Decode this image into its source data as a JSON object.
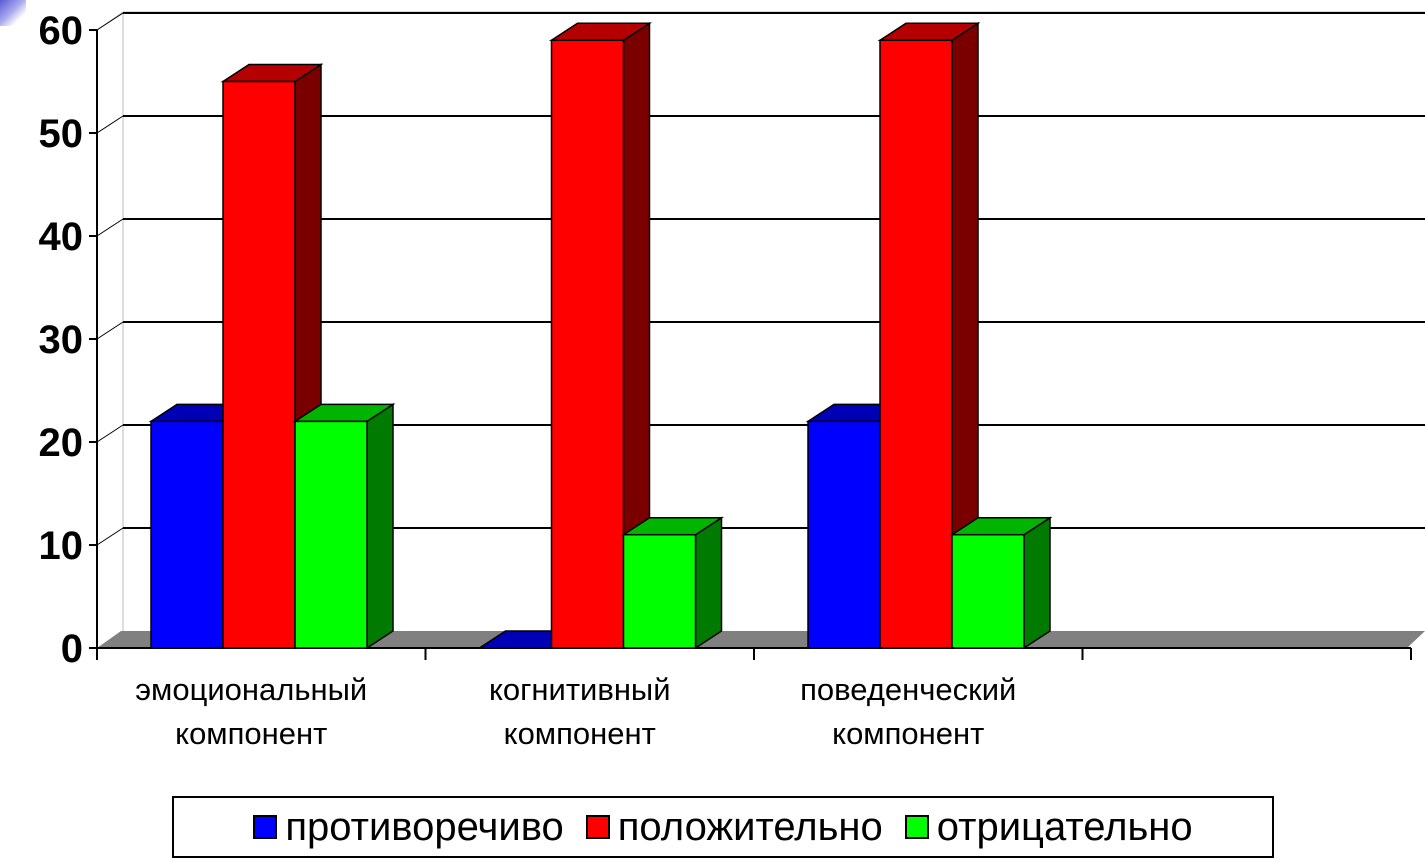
{
  "chart_data": {
    "type": "bar",
    "categories": [
      [
        "эмоциональный",
        "компонент"
      ],
      [
        "когнитивный",
        "компонент"
      ],
      [
        "поведенческий",
        "компонент"
      ],
      []
    ],
    "series": [
      {
        "name": "противоречиво",
        "values": [
          22,
          0,
          22,
          null
        ],
        "color": "#0000ff",
        "side_color": "#00007a",
        "top_color": "#0000b4"
      },
      {
        "name": "положительно",
        "values": [
          55,
          59,
          59,
          null
        ],
        "color": "#ff0000",
        "side_color": "#7a0000",
        "top_color": "#b40000"
      },
      {
        "name": "отрицательно",
        "values": [
          22,
          11,
          11,
          null
        ],
        "color": "#00ff00",
        "side_color": "#007a00",
        "top_color": "#00b400"
      }
    ],
    "y_ticks": [
      "0",
      "10",
      "20",
      "30",
      "40",
      "50",
      "60"
    ],
    "ylim": [
      0,
      60
    ],
    "grid": true,
    "floor_color": "#808080",
    "legend_position": "bottom",
    "title": "",
    "xlabel": "",
    "ylabel": ""
  },
  "legend": {
    "items": [
      {
        "label": "противоречиво",
        "color": "#0000ff"
      },
      {
        "label": "положительно",
        "color": "#ff0000"
      },
      {
        "label": "отрицательно",
        "color": "#00ff00"
      }
    ]
  }
}
